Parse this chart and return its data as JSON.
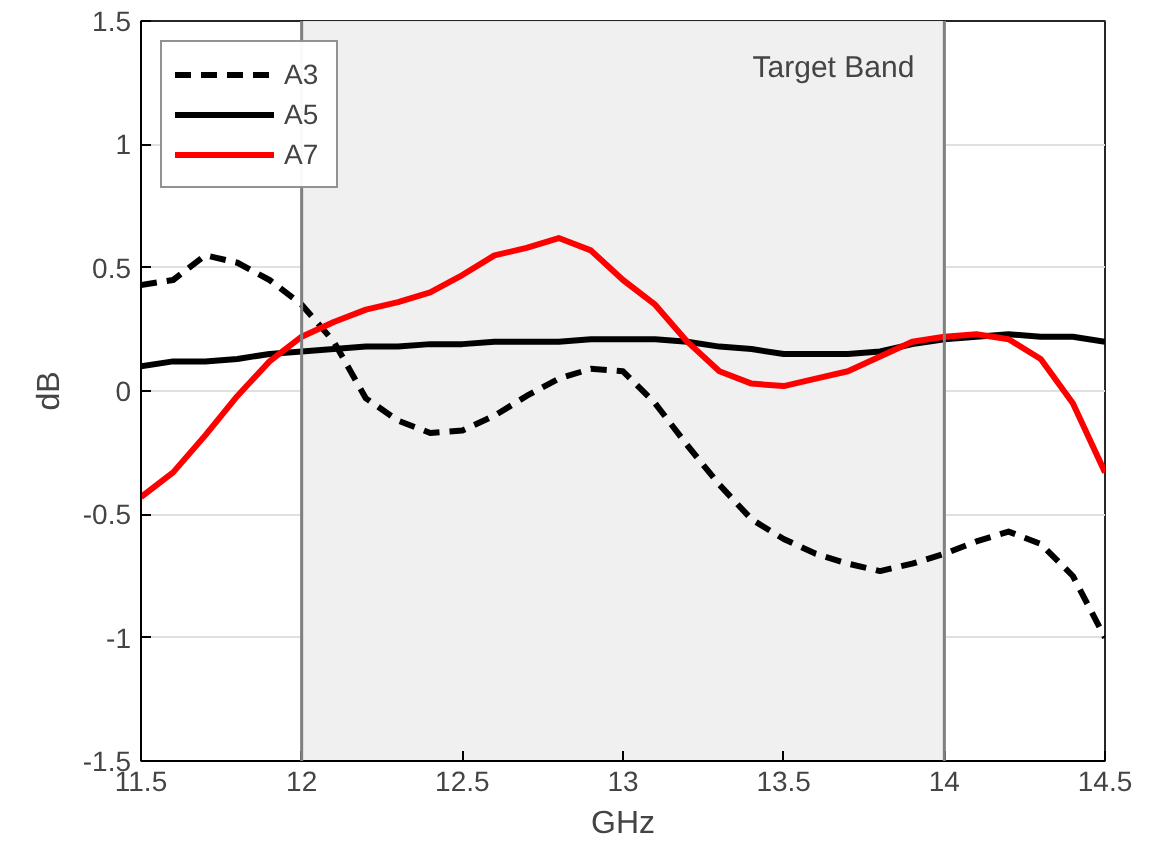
{
  "chart_data": {
    "type": "line",
    "xlabel": "GHz",
    "ylabel": "dB",
    "xlim": [
      11.5,
      14.5
    ],
    "ylim": [
      -1.5,
      1.5
    ],
    "xticks": [
      11.5,
      12,
      12.5,
      13,
      13.5,
      14,
      14.5
    ],
    "yticks": [
      -1.5,
      -1,
      -0.5,
      0,
      0.5,
      1,
      1.5
    ],
    "grid": true,
    "legend": "top left",
    "x": [
      11.5,
      11.6,
      11.7,
      11.8,
      11.9,
      12.0,
      12.1,
      12.2,
      12.3,
      12.4,
      12.5,
      12.6,
      12.7,
      12.8,
      12.9,
      13.0,
      13.1,
      13.2,
      13.3,
      13.4,
      13.5,
      13.6,
      13.7,
      13.8,
      13.9,
      14.0,
      14.1,
      14.2,
      14.3,
      14.4,
      14.5
    ],
    "series": [
      {
        "name": "A3",
        "color": "#000000",
        "line_style": "dashed",
        "values": [
          0.43,
          0.45,
          0.55,
          0.52,
          0.45,
          0.35,
          0.2,
          -0.03,
          -0.12,
          -0.17,
          -0.16,
          -0.1,
          -0.02,
          0.05,
          0.09,
          0.08,
          -0.05,
          -0.22,
          -0.38,
          -0.52,
          -0.6,
          -0.66,
          -0.7,
          -0.73,
          -0.7,
          -0.66,
          -0.61,
          -0.57,
          -0.62,
          -0.75,
          -1.0
        ]
      },
      {
        "name": "A5",
        "color": "#000000",
        "line_style": "solid",
        "values": [
          0.1,
          0.12,
          0.12,
          0.13,
          0.15,
          0.16,
          0.17,
          0.18,
          0.18,
          0.19,
          0.19,
          0.2,
          0.2,
          0.2,
          0.21,
          0.21,
          0.21,
          0.2,
          0.18,
          0.17,
          0.15,
          0.15,
          0.15,
          0.16,
          0.19,
          0.21,
          0.22,
          0.23,
          0.22,
          0.22,
          0.2
        ]
      },
      {
        "name": "A7",
        "color": "#ff0000",
        "line_style": "solid",
        "values": [
          -0.43,
          -0.33,
          -0.18,
          -0.02,
          0.12,
          0.22,
          0.28,
          0.33,
          0.36,
          0.4,
          0.47,
          0.55,
          0.58,
          0.62,
          0.57,
          0.45,
          0.35,
          0.2,
          0.08,
          0.03,
          0.02,
          0.05,
          0.08,
          0.14,
          0.2,
          0.22,
          0.23,
          0.21,
          0.13,
          -0.05,
          -0.33
        ]
      }
    ],
    "bands": [
      {
        "axis": "x",
        "from": 12,
        "to": 14,
        "label": "Target Band",
        "color": "#f0f0f0"
      }
    ]
  }
}
